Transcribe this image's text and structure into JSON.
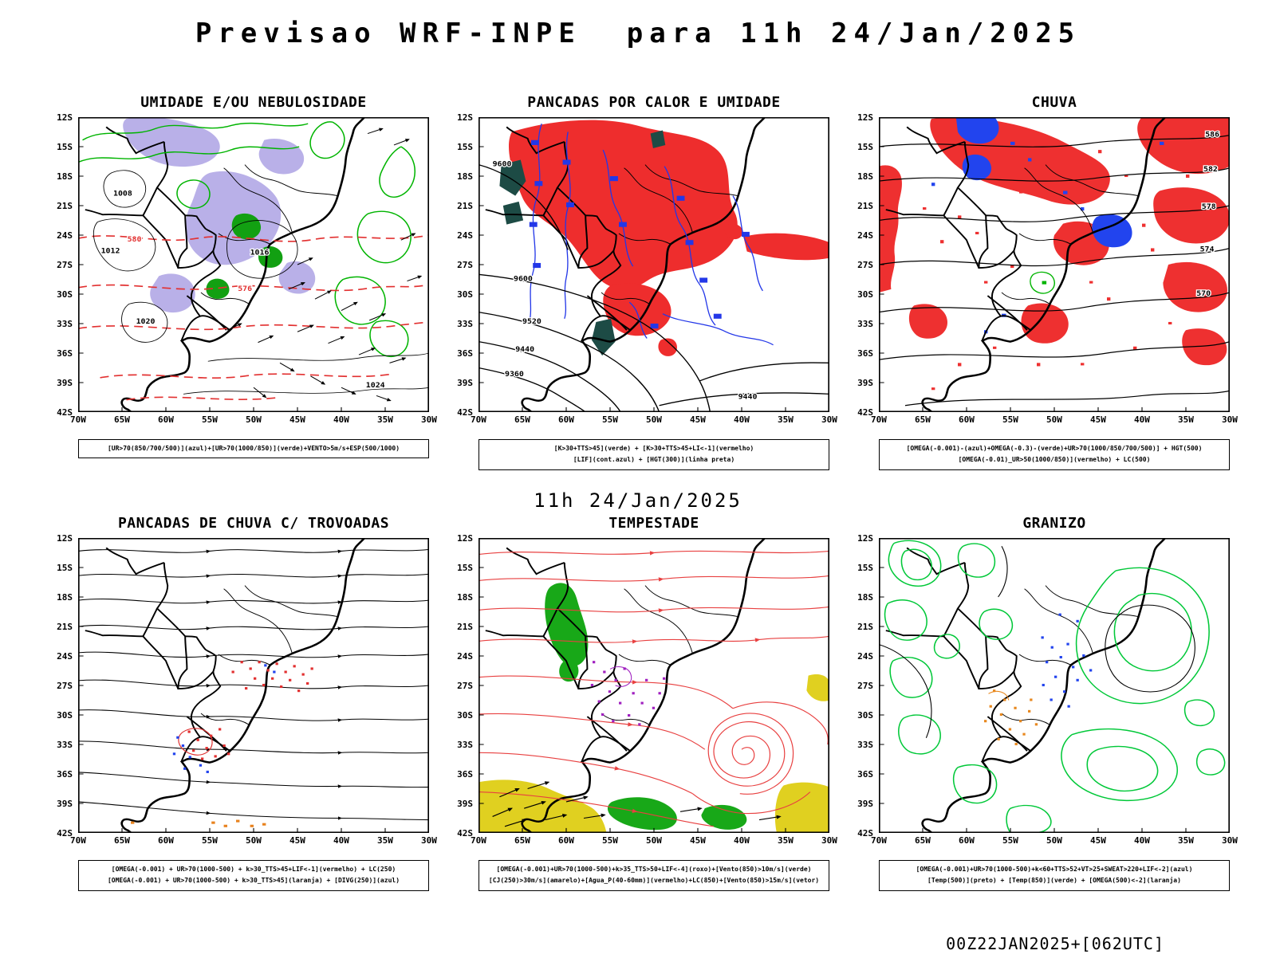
{
  "page": {
    "title": "Previsao WRF-INPE  para 11h 24/Jan/2025",
    "subtitle": "11h 24/Jan/2025",
    "footer": "00Z22JAN2025+[062UTC]"
  },
  "axes": {
    "lat": [
      "12S",
      "15S",
      "18S",
      "21S",
      "24S",
      "27S",
      "30S",
      "33S",
      "36S",
      "39S",
      "42S"
    ],
    "lon": [
      "70W",
      "65W",
      "60W",
      "55W",
      "50W",
      "45W",
      "40W",
      "35W",
      "30W"
    ]
  },
  "colors": {
    "red": "#e23030",
    "green": "#00b400",
    "blue": "#2337e8",
    "lavender": "#b9b0e8",
    "yellow": "#e0d020",
    "orange": "#e8821e",
    "purple": "#a020c0",
    "dark_teal": "#1d4b45",
    "black": "#000000"
  },
  "panels": [
    {
      "id": "umidade",
      "title": "UMIDADE E/OU NEBULOSIDADE",
      "caption_lines": [
        "[UR>70(850/700/500)](azul)+[UR>70(1000/850)](verde)+VENTO>5m/s+ESP(500/1000)"
      ],
      "contour_labels": [
        "1008",
        "1012",
        "1016",
        "1020",
        "1024",
        "576",
        "580"
      ]
    },
    {
      "id": "pancadas-calor",
      "title": "PANCADAS POR CALOR E UMIDADE",
      "caption_lines": [
        "[K>30+TTS>45](verde) + [K>30+TTS>45+LI<-1](vermelho)",
        "[LIF](cont.azul) + [HGT(300)](linha preta)"
      ],
      "contour_labels": [
        "9600",
        "9600",
        "9520",
        "9440",
        "9360",
        "9440"
      ]
    },
    {
      "id": "chuva",
      "title": "CHUVA",
      "caption_lines": [
        "[OMEGA(-0.001)-(azul)+OMEGA(-0.3)-(verde)+UR>70(1000/850/700/500)] + HGT(500)",
        "[OMEGA(-0.01)_UR>50(1000/850)](vermelho) + LC(500)"
      ],
      "contour_labels": [
        "586",
        "582",
        "578",
        "574",
        "570"
      ]
    },
    {
      "id": "trovoadas",
      "title": "PANCADAS DE CHUVA C/ TROVOADAS",
      "caption_lines": [
        "[OMEGA(-0.001) + UR>70(1000-500) + k>30_TTS>45+LIF<-1](vermelho) + LC(250)",
        "[OMEGA(-0.001) + UR>70(1000-500) + k>30_TTS>45](laranja) + [DIVG(250)](azul)"
      ],
      "contour_labels": []
    },
    {
      "id": "tempestade",
      "title": "TEMPESTADE",
      "caption_lines": [
        "[OMEGA(-0.001)+UR>70(1000-500)+k>35_TTS>50+LIF<-4](roxo)+[Vento(850)>10m/s](verde)",
        "[CJ(250)>30m/s](amarelo)+[Agua_P(40-60mm)](vermelho)+LC(850)+[Vento(850)>15m/s](vetor)"
      ],
      "contour_labels": []
    },
    {
      "id": "granizo",
      "title": "GRANIZO",
      "caption_lines": [
        "[OMEGA(-0.001)+UR>70(1000-500)+k<60+TTS>52+VT>25+SWEAT>220+LIF<-2](azul)",
        "[Temp(500)](preto) + [Temp(850)](verde) + [OMEGA(500)<-2](laranja)"
      ],
      "contour_labels": []
    }
  ]
}
